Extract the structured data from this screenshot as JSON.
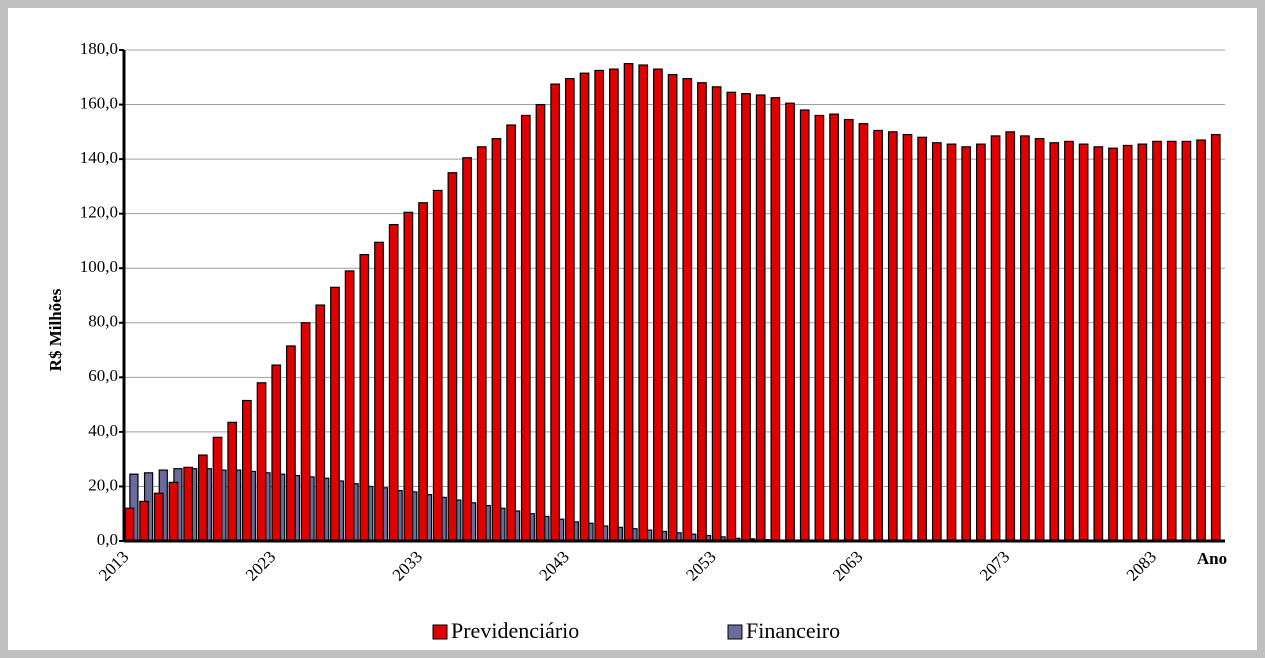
{
  "chart_data": {
    "type": "bar",
    "y_label": "R$ Milhões",
    "x_label": "Ano",
    "categories": [
      "2013",
      null,
      null,
      null,
      null,
      null,
      null,
      null,
      null,
      null,
      "2023",
      null,
      null,
      null,
      null,
      null,
      null,
      null,
      null,
      null,
      "2033",
      null,
      null,
      null,
      null,
      null,
      null,
      null,
      null,
      null,
      "2043",
      null,
      null,
      null,
      null,
      null,
      null,
      null,
      null,
      null,
      "2053",
      null,
      null,
      null,
      null,
      null,
      null,
      null,
      null,
      null,
      "2063",
      null,
      null,
      null,
      null,
      null,
      null,
      null,
      null,
      null,
      "2073",
      null,
      null,
      null,
      null,
      null,
      null,
      null,
      null,
      null,
      "2083",
      null,
      null,
      null,
      null
    ],
    "series": [
      {
        "name": "Previdenciário",
        "color": "#e00000",
        "values": [
          12,
          14.5,
          17.5,
          21.5,
          27,
          31.5,
          38,
          43.5,
          51.5,
          58,
          64.5,
          71.5,
          80,
          86.5,
          93,
          99,
          105,
          109.5,
          116,
          120.5,
          124,
          128.5,
          135,
          140.5,
          144.5,
          147.5,
          152.5,
          156,
          160,
          167.5,
          169.5,
          171.5,
          172.5,
          173,
          175,
          174.5,
          173,
          171,
          169.5,
          168,
          166.5,
          164.5,
          164,
          163.5,
          162.5,
          160.5,
          158,
          156,
          156.5,
          154.5,
          153,
          150.5,
          150,
          149,
          148,
          146,
          145.5,
          144.5,
          145.5,
          148.5,
          150,
          148.5,
          147.5,
          146,
          146.5,
          145.5,
          144.5,
          144,
          145,
          145.5,
          146.5,
          146.5,
          146.5,
          147,
          149
        ]
      },
      {
        "name": "Financeiro",
        "color": "#6b6b9b",
        "values": [
          24.5,
          25,
          26,
          26.5,
          26.5,
          26.5,
          26,
          26,
          25.5,
          25,
          24.5,
          24,
          23.5,
          23,
          22,
          21,
          20,
          19.5,
          18.5,
          18,
          17,
          16,
          15,
          14,
          13,
          12,
          11,
          10,
          9,
          8,
          7,
          6.5,
          5.5,
          5,
          4.5,
          4,
          3.5,
          3,
          2.5,
          2,
          1.5,
          1,
          0.8,
          0.5,
          0.3,
          0,
          0,
          0,
          0,
          0,
          0,
          0,
          0,
          0,
          0,
          0,
          0,
          0,
          0,
          0,
          0,
          0,
          0,
          0,
          0,
          0,
          0,
          0,
          0,
          0,
          0,
          0,
          0,
          0,
          0
        ]
      }
    ],
    "ylim": [
      0,
      180
    ],
    "yticks": [
      {
        "value": 0,
        "label": "0,0"
      },
      {
        "value": 20,
        "label": "20,0"
      },
      {
        "value": 40,
        "label": "40,0"
      },
      {
        "value": 60,
        "label": "60,0"
      },
      {
        "value": 80,
        "label": "80,0"
      },
      {
        "value": 100,
        "label": "100,0"
      },
      {
        "value": 120,
        "label": "120,0"
      },
      {
        "value": 140,
        "label": "140,0"
      },
      {
        "value": 160,
        "label": "160,0"
      },
      {
        "value": 180,
        "label": "180,0"
      }
    ],
    "grid": true,
    "legend": "bottom"
  }
}
